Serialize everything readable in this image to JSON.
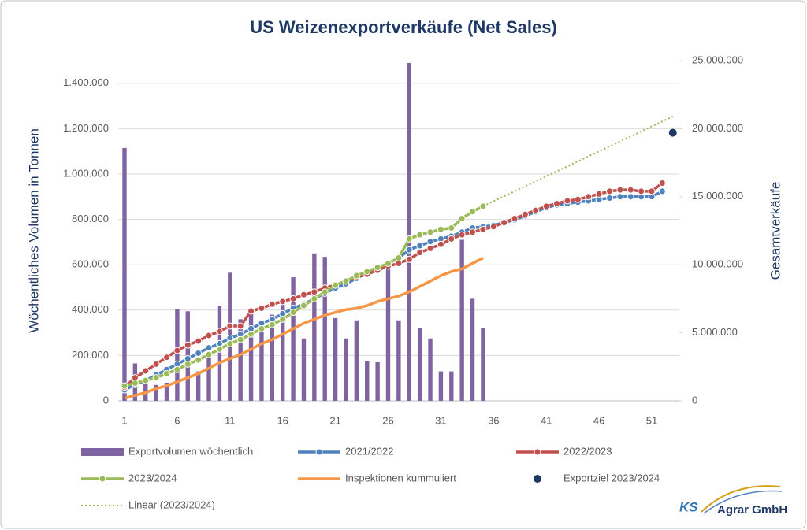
{
  "chart_data": {
    "type": "combo",
    "title": "US Weizenexportverkäufe (Net Sales)",
    "y_label": "Wöchentliches Volumen in Tonnen",
    "y2_label": "Gesamtverkäufe",
    "categories": [
      "1",
      null,
      null,
      null,
      null,
      "6",
      null,
      null,
      null,
      null,
      "11",
      null,
      null,
      null,
      null,
      "16",
      null,
      null,
      null,
      null,
      "21",
      null,
      null,
      null,
      null,
      "26",
      null,
      null,
      null,
      null,
      "31",
      null,
      null,
      null,
      null,
      "36",
      null,
      null,
      null,
      null,
      "41",
      null,
      null,
      null,
      null,
      "46",
      null,
      null,
      null,
      null,
      "51",
      null,
      null
    ],
    "ylim": [
      0,
      1500000
    ],
    "yticks": [
      0,
      {
        "value": 200000,
        "label": "200.000"
      },
      {
        "value": 400000,
        "label": "400.000"
      },
      {
        "value": 600000,
        "label": "600.000"
      },
      {
        "value": 800000,
        "label": "800.000"
      },
      {
        "value": 1000000,
        "label": "1.000.000"
      },
      {
        "value": 1200000,
        "label": "1.200.000"
      },
      {
        "value": 1400000,
        "label": "1.400.000"
      }
    ],
    "y2lim": [
      0,
      25000000
    ],
    "y2ticks": [
      0,
      {
        "value": 5000000,
        "label": "5.000.000"
      },
      {
        "value": 10000000,
        "label": "10.000.000"
      },
      {
        "value": 15000000,
        "label": "15.000.000"
      },
      {
        "value": 20000000,
        "label": "20.000.000"
      },
      {
        "value": 25000000,
        "label": "25.000.000"
      }
    ],
    "grid": true,
    "series": [
      {
        "name": "Exportvolumen wöchentlich",
        "type": "bar",
        "color": "#8064a2",
        "values": [
          1115000,
          165000,
          100000,
          70000,
          80000,
          405000,
          395000,
          130000,
          200000,
          420000,
          565000,
          360000,
          405000,
          320000,
          380000,
          430000,
          545000,
          275000,
          650000,
          635000,
          365000,
          275000,
          355000,
          175000,
          170000,
          580000,
          355000,
          1490000,
          320000,
          275000,
          130000,
          130000,
          710000,
          450000,
          320000,
          null,
          null,
          null,
          null,
          null,
          null,
          null,
          null,
          null,
          null,
          null,
          null,
          null,
          null,
          null,
          null,
          null,
          null
        ]
      },
      {
        "name": "2021/2022",
        "type": "line",
        "marker": true,
        "axis": "y2",
        "color": "#4f81bd",
        "values": [
          800000,
          1200000,
          1500000,
          1900000,
          2300000,
          2700000,
          3100000,
          3500000,
          3900000,
          4200000,
          4600000,
          4900000,
          5300000,
          5700000,
          6000000,
          6400000,
          6800000,
          7100000,
          7500000,
          7900000,
          8300000,
          8600000,
          9000000,
          9400000,
          9700000,
          10100000,
          10500000,
          11100000,
          11400000,
          11700000,
          11900000,
          12100000,
          12400000,
          12700000,
          12800000,
          12900000,
          13100000,
          13300000,
          13600000,
          13900000,
          14200000,
          14400000,
          14500000,
          14600000,
          14700000,
          14800000,
          14900000,
          15000000,
          15000000,
          15000000,
          15000000,
          15400000,
          null
        ]
      },
      {
        "name": "2022/2023",
        "type": "line",
        "marker": true,
        "axis": "y2",
        "color": "#c0504d",
        "values": [
          1000000,
          1700000,
          2200000,
          2700000,
          3200000,
          3700000,
          4100000,
          4400000,
          4800000,
          5100000,
          5500000,
          5500000,
          6600000,
          6800000,
          7100000,
          7300000,
          7500000,
          7800000,
          8000000,
          8300000,
          8500000,
          8800000,
          9100000,
          9300000,
          9600000,
          9900000,
          10100000,
          10400000,
          10900000,
          11200000,
          11500000,
          11900000,
          12200000,
          12400000,
          12600000,
          12800000,
          13100000,
          13400000,
          13700000,
          14000000,
          14300000,
          14500000,
          14700000,
          14800000,
          15000000,
          15200000,
          15400000,
          15500000,
          15500000,
          15400000,
          15400000,
          16000000,
          null
        ]
      },
      {
        "name": "2023/2024",
        "type": "line",
        "marker": true,
        "axis": "y2",
        "color": "#9bbb59",
        "values": [
          1100000,
          1300000,
          1500000,
          1700000,
          2000000,
          2300000,
          2700000,
          3000000,
          3400000,
          3800000,
          4200000,
          4500000,
          4900000,
          5300000,
          5600000,
          6000000,
          6500000,
          7000000,
          7500000,
          8000000,
          8500000,
          8800000,
          9200000,
          9500000,
          9800000,
          10100000,
          10500000,
          11900000,
          12200000,
          12400000,
          12600000,
          12700000,
          13400000,
          13900000,
          14300000,
          null,
          null,
          null,
          null,
          null,
          null,
          null,
          null,
          null,
          null,
          null,
          null,
          null,
          null,
          null,
          null,
          null,
          null
        ]
      },
      {
        "name": "Inspektionen kummuliert",
        "type": "line",
        "axis": "y2",
        "color": "#f79646",
        "values": [
          200000,
          400000,
          600000,
          900000,
          1100000,
          1400000,
          1700000,
          2000000,
          2400000,
          2800000,
          3100000,
          3400000,
          3800000,
          4200000,
          4500000,
          4900000,
          5300000,
          5700000,
          6000000,
          6300000,
          6500000,
          6700000,
          6800000,
          7000000,
          7300000,
          7500000,
          7700000,
          8000000,
          8400000,
          8800000,
          9200000,
          9500000,
          9700000,
          10100000,
          10500000,
          null,
          null,
          null,
          null,
          null,
          null,
          null,
          null,
          null,
          null,
          null,
          null,
          null,
          null,
          null,
          null,
          null,
          null
        ]
      },
      {
        "name": "Exportziel 2023/2024",
        "type": "scatter",
        "axis": "y2",
        "color": "#1f3864",
        "values": [
          null,
          null,
          null,
          null,
          null,
          null,
          null,
          null,
          null,
          null,
          null,
          null,
          null,
          null,
          null,
          null,
          null,
          null,
          null,
          null,
          null,
          null,
          null,
          null,
          null,
          null,
          null,
          null,
          null,
          null,
          null,
          null,
          null,
          null,
          null,
          null,
          null,
          null,
          null,
          null,
          null,
          null,
          null,
          null,
          null,
          null,
          null,
          null,
          null,
          null,
          null,
          null,
          19700000
        ]
      },
      {
        "name": "Linear (2023/2024)",
        "type": "trendline",
        "axis": "y2",
        "color": "#9bbb59",
        "values": [
          null,
          null,
          null,
          null,
          null,
          null,
          null,
          null,
          null,
          null,
          null,
          null,
          null,
          null,
          null,
          null,
          null,
          null,
          null,
          null,
          null,
          null,
          null,
          null,
          null,
          null,
          null,
          null,
          null,
          null,
          null,
          null,
          null,
          null,
          14300000,
          14670000,
          15030000,
          15400000,
          15770000,
          16130000,
          16500000,
          16870000,
          17230000,
          17600000,
          17970000,
          18330000,
          18700000,
          19070000,
          19430000,
          19800000,
          20170000,
          20530000,
          20900000
        ]
      }
    ]
  },
  "logo": {
    "mark": "KS",
    "name": "Agrar GmbH"
  }
}
